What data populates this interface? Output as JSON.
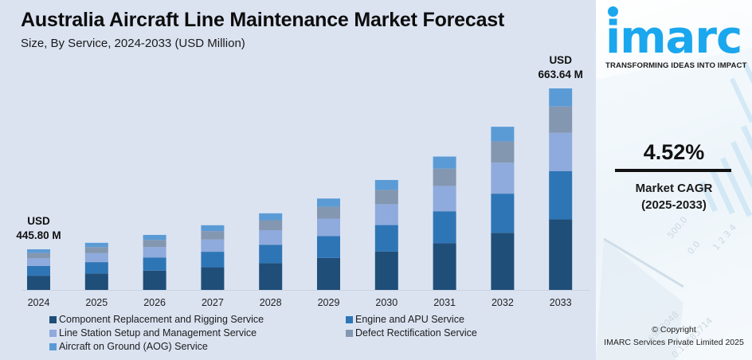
{
  "header": {
    "title": "Australia Aircraft Line Maintenance Market Forecast",
    "subtitle": "Size, By Service, 2024-2033 (USD Million)"
  },
  "chart_data": {
    "type": "bar",
    "stacked": true,
    "title": "Australia Aircraft Line Maintenance Market Forecast",
    "subtitle": "Size, By Service, 2024-2033 (USD Million)",
    "xlabel": "",
    "ylabel": "USD Million",
    "categories": [
      "2024",
      "2025",
      "2026",
      "2027",
      "2028",
      "2029",
      "2030",
      "2031",
      "2032",
      "2033"
    ],
    "totals": [
      445.8,
      465.95,
      487.01,
      509.02,
      532.03,
      556.08,
      581.21,
      607.48,
      634.94,
      663.64
    ],
    "series": [
      {
        "name": "Component Replacement and Rigging Service",
        "color": "#1f4e79",
        "values": [
          156.0,
          163.1,
          170.5,
          178.2,
          186.2,
          194.6,
          203.4,
          212.6,
          222.2,
          232.3
        ]
      },
      {
        "name": "Engine and APU Service",
        "color": "#2e75b6",
        "values": [
          106.9,
          111.8,
          116.9,
          122.2,
          127.7,
          133.5,
          139.5,
          145.8,
          152.4,
          159.3
        ]
      },
      {
        "name": "Line Station Setup and Management Service",
        "color": "#8faadc",
        "values": [
          84.7,
          88.5,
          92.5,
          96.7,
          101.1,
          105.7,
          110.4,
          115.4,
          120.6,
          126.1
        ]
      },
      {
        "name": "Defect Rectification Service",
        "color": "#8497b0",
        "values": [
          58.0,
          60.6,
          63.3,
          66.2,
          69.2,
          72.3,
          75.6,
          79.0,
          82.5,
          86.3
        ]
      },
      {
        "name": "Aircraft on Ground (AOG) Service",
        "color": "#5b9bd5",
        "values": [
          40.2,
          41.95,
          43.81,
          45.72,
          47.83,
          49.98,
          52.31,
          54.68,
          57.24,
          59.64
        ]
      }
    ],
    "annotations": [
      {
        "category": "2024",
        "line1": "USD",
        "line2": "445.80 M"
      },
      {
        "category": "2033",
        "line1": "USD",
        "line2": "663.64 M"
      }
    ],
    "ylim": [
      390,
      680
    ],
    "grid": false,
    "y_axis_visible": false,
    "legend_position": "bottom"
  },
  "sidebar": {
    "logo_text": "imarc",
    "tagline": "TRANSFORMING IDEAS INTO IMPACT",
    "cagr_value": "4.52%",
    "cagr_label": "Market CAGR",
    "cagr_period": "(2025-2033)",
    "copyright_line1": "© Copyright",
    "copyright_line2": "IMARC Services Private Limited 2025",
    "brand_color": "#1aa7ee"
  }
}
